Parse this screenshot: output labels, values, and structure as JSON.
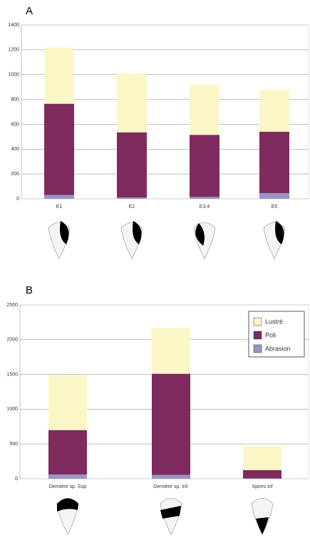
{
  "chart_data": [
    {
      "type": "bar",
      "stacked": true,
      "panel": "A",
      "categories": [
        "E1",
        "E2",
        "E3.4",
        "E5"
      ],
      "series": [
        {
          "name": "Abrasion",
          "color": "#9a93c8",
          "values": [
            30,
            10,
            15,
            45
          ]
        },
        {
          "name": "Poli",
          "color": "#7f2b5e",
          "values": [
            735,
            525,
            500,
            495
          ]
        },
        {
          "name": "Lustré",
          "color": "#fbf6c6",
          "values": [
            455,
            475,
            405,
            335
          ]
        }
      ],
      "ylim": [
        0,
        1400
      ],
      "yticks": [
        0,
        200,
        400,
        600,
        800,
        1000,
        1200,
        1400
      ],
      "grid": true,
      "legend": false
    },
    {
      "type": "bar",
      "stacked": true,
      "panel": "B",
      "categories": [
        "Dernière sp. Sup",
        "Dernière sp. Inf.",
        "Spires inf"
      ],
      "series": [
        {
          "name": "Abrasion",
          "color": "#9a93c8",
          "values": [
            60,
            55,
            5
          ]
        },
        {
          "name": "Poli",
          "color": "#7f2b5e",
          "values": [
            640,
            1455,
            120
          ]
        },
        {
          "name": "Lustré",
          "color": "#fbf6c6",
          "values": [
            790,
            655,
            345
          ]
        }
      ],
      "ylim": [
        0,
        2500
      ],
      "yticks": [
        0,
        500,
        1000,
        1500,
        2000,
        2500
      ],
      "grid": true,
      "legend": "upper right"
    }
  ]
}
